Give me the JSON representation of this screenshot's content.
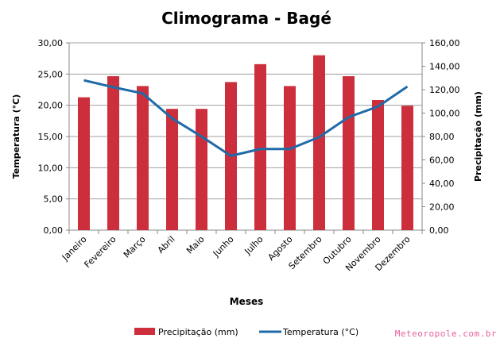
{
  "chart_data": {
    "type": "bar+line",
    "title": "Climograma - Bagé",
    "xlabel": "Meses",
    "ylabel_left": "Temperatura (°C)",
    "ylabel_right": "Precipitação (mm)",
    "ylim_left": [
      0,
      30
    ],
    "ylim_right": [
      0,
      160
    ],
    "yticks_left": [
      "0,00",
      "5,00",
      "10,00",
      "15,00",
      "20,00",
      "25,00",
      "30,00"
    ],
    "yticks_right": [
      "0,00",
      "20,00",
      "40,00",
      "60,00",
      "80,00",
      "100,00",
      "120,00",
      "140,00",
      "160,00"
    ],
    "grid": true,
    "legend_position": "bottom",
    "categories": [
      "Janeiro",
      "Fevereiro",
      "Março",
      "Abril",
      "Maio",
      "Junho",
      "Julho",
      "Agosto",
      "Setembro",
      "Outubro",
      "Novembro",
      "Dezembro"
    ],
    "series": [
      {
        "name": "Precipitação (mm)",
        "type": "bar",
        "axis": "right",
        "color": "#cc2f3b",
        "values": [
          113.5,
          131.5,
          123.1,
          103.6,
          103.6,
          126.5,
          141.8,
          123.1,
          149.4,
          131.5,
          111.2,
          106.3
        ]
      },
      {
        "name": "Temperatura (°C)",
        "type": "line",
        "axis": "left",
        "color": "#1f6aa8",
        "values": [
          24.0,
          22.9,
          21.9,
          17.9,
          15.0,
          11.9,
          13.0,
          13.0,
          14.9,
          18.1,
          19.8,
          23.0
        ]
      }
    ]
  },
  "watermark": "Meteoropole.com.br"
}
